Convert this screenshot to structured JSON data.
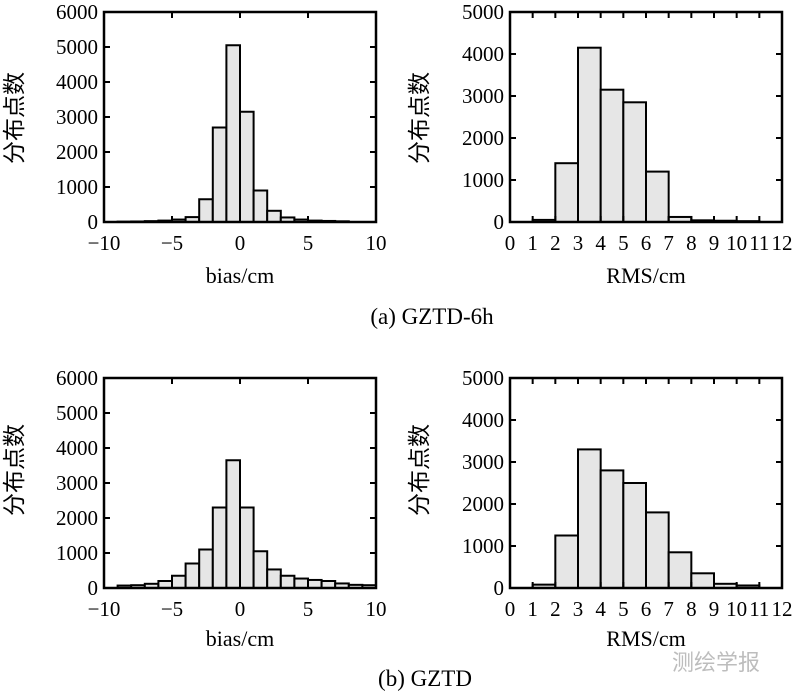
{
  "chart_data": [
    {
      "type": "bar",
      "title": "",
      "xlabel": "bias/cm",
      "ylabel": "分布点数",
      "xlim": [
        -10,
        10
      ],
      "ylim": [
        0,
        6000
      ],
      "xticks": [
        "−10",
        "−5",
        "0",
        "5",
        "10"
      ],
      "yticks": [
        "0",
        "1000",
        "2000",
        "3000",
        "4000",
        "5000",
        "6000"
      ],
      "bin_edges": [
        -10,
        -9,
        -8,
        -7,
        -6,
        -5,
        -4,
        -3,
        -2,
        -1,
        0,
        1,
        2,
        3,
        4,
        5,
        6,
        7,
        8,
        9,
        10
      ],
      "values": [
        0,
        10,
        15,
        25,
        40,
        70,
        140,
        650,
        2700,
        5050,
        3150,
        900,
        320,
        130,
        70,
        40,
        30,
        20,
        0,
        0
      ]
    },
    {
      "type": "bar",
      "title": "",
      "xlabel": "RMS/cm",
      "ylabel": "分布点数",
      "xlim": [
        0,
        12
      ],
      "ylim": [
        0,
        5000
      ],
      "xticks": [
        "0",
        "1",
        "2",
        "3",
        "4",
        "5",
        "6",
        "7",
        "8",
        "9",
        "10",
        "11",
        "12"
      ],
      "yticks": [
        "0",
        "1000",
        "2000",
        "3000",
        "4000",
        "5000"
      ],
      "bin_edges": [
        0,
        1,
        2,
        3,
        4,
        5,
        6,
        7,
        8,
        9,
        10,
        11,
        12
      ],
      "values": [
        0,
        50,
        1400,
        4150,
        3150,
        2850,
        1200,
        120,
        40,
        30,
        20,
        0
      ]
    },
    {
      "type": "bar",
      "title": "",
      "xlabel": "bias/cm",
      "ylabel": "分布点数",
      "xlim": [
        -10,
        10
      ],
      "ylim": [
        0,
        6000
      ],
      "xticks": [
        "−10",
        "−5",
        "0",
        "5",
        "10"
      ],
      "yticks": [
        "0",
        "1000",
        "2000",
        "3000",
        "4000",
        "5000",
        "6000"
      ],
      "bin_edges": [
        -10,
        -9,
        -8,
        -7,
        -6,
        -5,
        -4,
        -3,
        -2,
        -1,
        0,
        1,
        2,
        3,
        4,
        5,
        6,
        7,
        8,
        9,
        10
      ],
      "values": [
        0,
        70,
        80,
        120,
        200,
        350,
        700,
        1100,
        2300,
        3650,
        2300,
        1050,
        530,
        350,
        270,
        230,
        200,
        130,
        90,
        80
      ]
    },
    {
      "type": "bar",
      "title": "",
      "xlabel": "RMS/cm",
      "ylabel": "分布点数",
      "xlim": [
        0,
        12
      ],
      "ylim": [
        0,
        5000
      ],
      "xticks": [
        "0",
        "1",
        "2",
        "3",
        "4",
        "5",
        "6",
        "7",
        "8",
        "9",
        "10",
        "11",
        "12"
      ],
      "yticks": [
        "0",
        "1000",
        "2000",
        "3000",
        "4000",
        "5000"
      ],
      "bin_edges": [
        0,
        1,
        2,
        3,
        4,
        5,
        6,
        7,
        8,
        9,
        10,
        11,
        12
      ],
      "values": [
        0,
        80,
        1250,
        3300,
        2800,
        2500,
        1800,
        850,
        350,
        100,
        60,
        0
      ]
    }
  ],
  "captions": {
    "a": "(a) GZTD-6h",
    "b": "(b) GZTD"
  },
  "watermark": "测绘学报",
  "colors": {
    "bar_fill": "#e6e6e6",
    "bar_stroke": "#000000",
    "axis": "#000000"
  }
}
